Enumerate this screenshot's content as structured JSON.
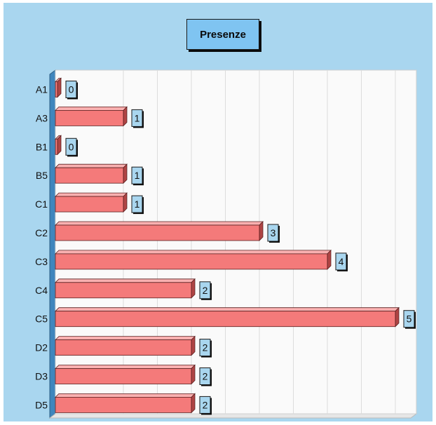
{
  "chart_data": {
    "type": "bar",
    "orientation": "horizontal",
    "title": "Presenze",
    "categories": [
      "A1",
      "A3",
      "B1",
      "B5",
      "C1",
      "C2",
      "C3",
      "C4",
      "C5",
      "D2",
      "D3",
      "D5"
    ],
    "values": [
      0,
      1,
      0,
      1,
      1,
      3,
      4,
      2,
      5,
      2,
      2,
      2
    ],
    "xlim": [
      0,
      5
    ],
    "xlabel": "",
    "ylabel": "",
    "grid": true,
    "data_labels": true,
    "colors": {
      "bar": "#f47a7a",
      "bar_dark": "#b04545",
      "background": "#a9d6ef",
      "plot_area": "#fafafa",
      "label_box": "#a9d6ef",
      "title_box": "#7fc4f1"
    }
  }
}
